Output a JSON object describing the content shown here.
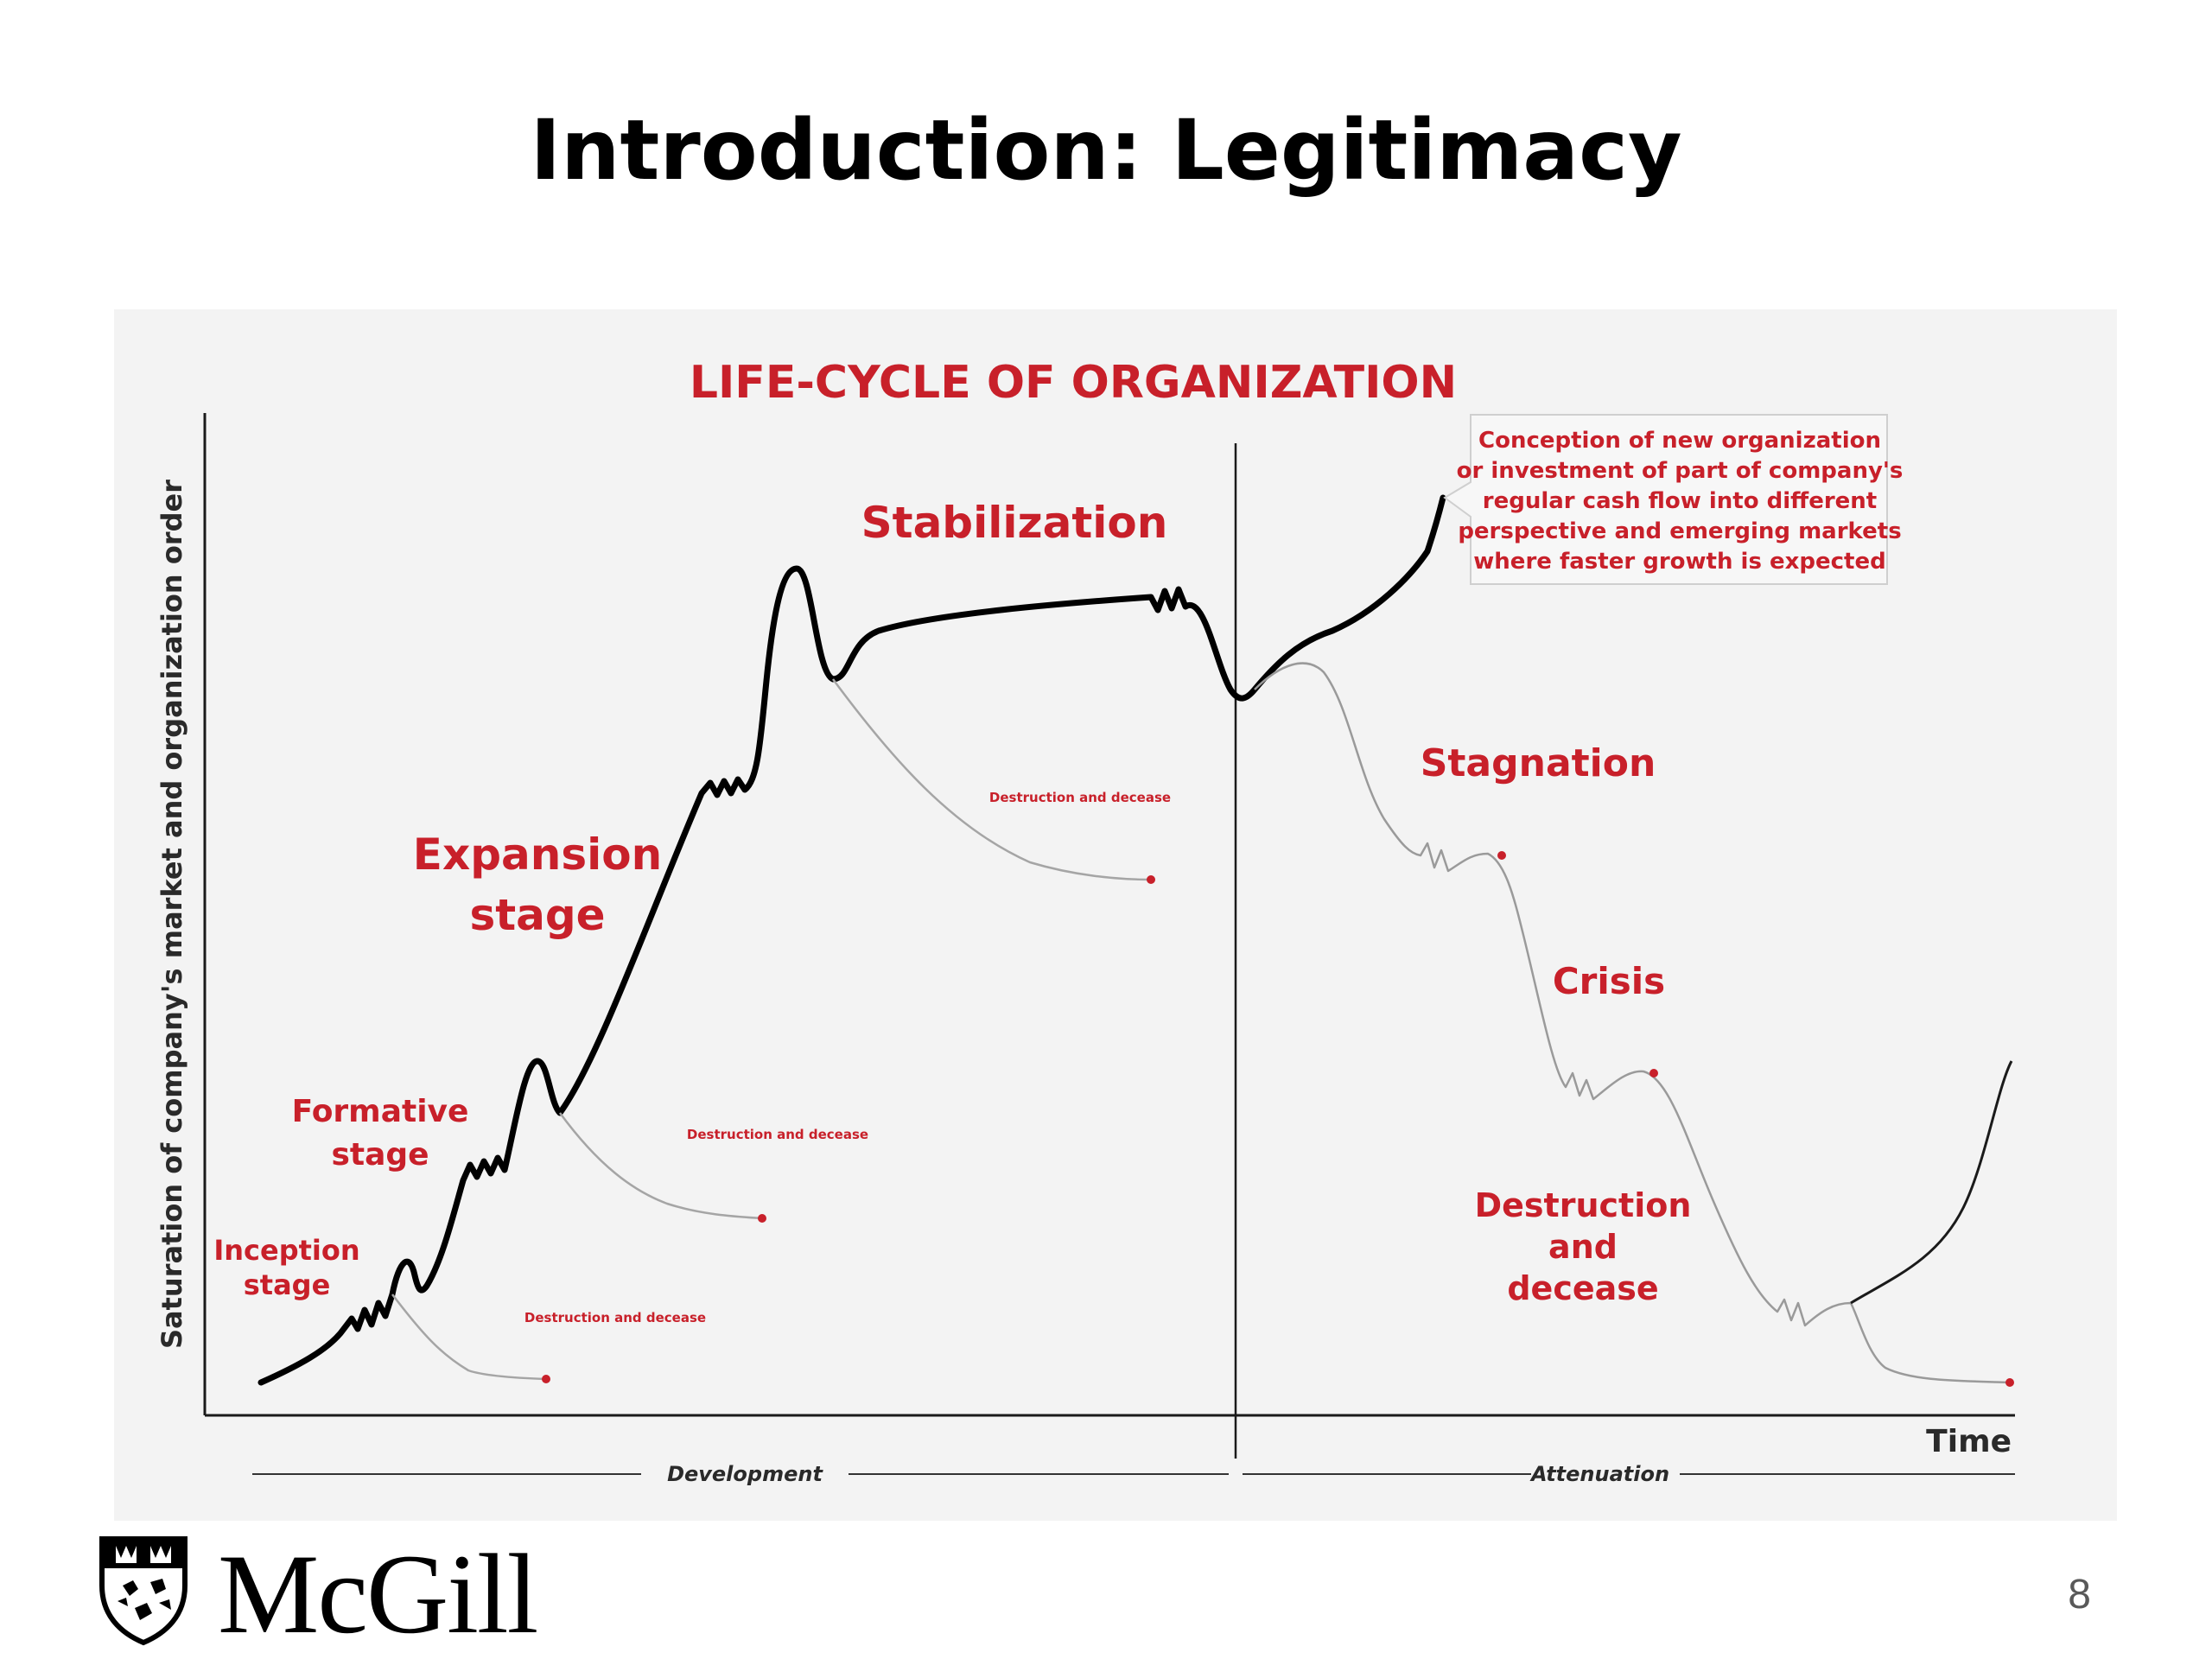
{
  "slide": {
    "title": "Introduction: Legitimacy",
    "page_number": "8",
    "logo_text": "McGill"
  },
  "diagram": {
    "title": "LIFE-CYCLE OF ORGANIZATION",
    "y_axis_label": "Saturation of company's market and organization order",
    "x_axis_label": "Time",
    "phases": {
      "development": "Development",
      "attenuation": "Attenuation"
    },
    "stages": {
      "inception": [
        "Inception",
        "stage"
      ],
      "formative": [
        "Formative",
        "stage"
      ],
      "expansion": [
        "Expansion",
        "stage"
      ],
      "stabilization": "Stabilization",
      "stagnation": "Stagnation",
      "crisis": "Crisis",
      "destruction": [
        "Destruction",
        "and",
        "decease"
      ]
    },
    "branch_label": "Destruction and decease",
    "callout": [
      "Conception of new organization",
      "or investment of part of company's",
      "regular cash flow into different",
      "perspective and emerging markets",
      "where faster growth is expected"
    ],
    "colors": {
      "accent": "#c8202a",
      "curve": "#000000",
      "decline": "#9a9a9a",
      "background": "#f3f3f3"
    }
  }
}
